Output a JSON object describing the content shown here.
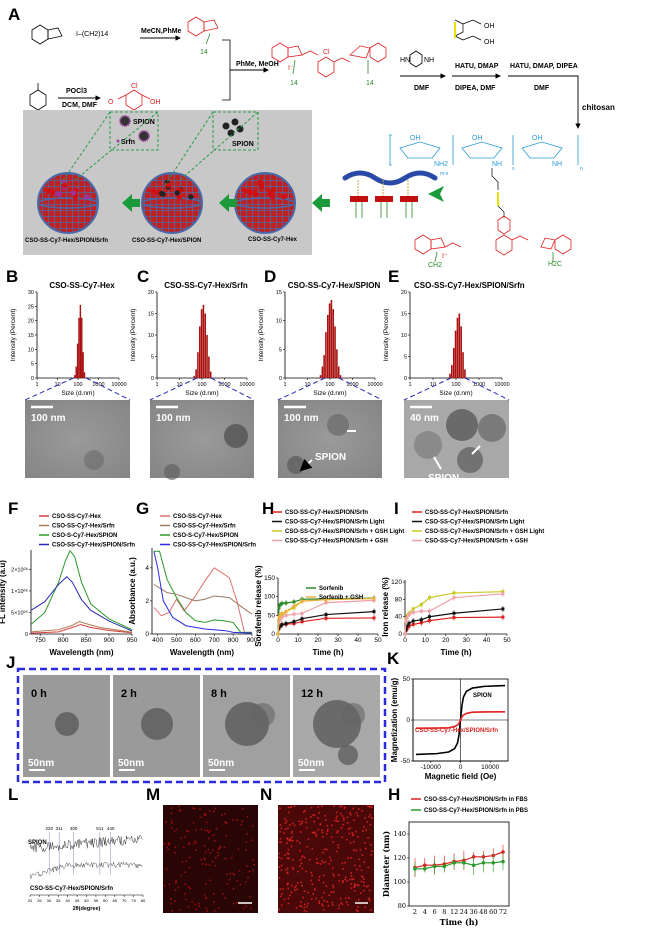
{
  "panel_labels": {
    "A": "A",
    "B": "B",
    "C": "C",
    "D": "D",
    "E": "E",
    "F": "F",
    "G": "G",
    "H": "H",
    "I": "I",
    "J": "J",
    "K": "K",
    "L": "L",
    "M": "M",
    "N": "N",
    "H2": "H"
  },
  "scheme": {
    "reagents": {
      "r1": "MeCN,PhMe",
      "r2": "PhMe, MeOH",
      "r3": "DMF",
      "r4a": "HATU, DMAP",
      "r4b": "DIPEA, DMF",
      "r5a": "HATU, DMAP, DIPEA",
      "r5b": "DMF",
      "r6": "chitosan",
      "r7a": "POCl3",
      "r7b": "DCM, DMF"
    },
    "atoms": {
      "cl": "Cl",
      "oh": "OH",
      "o": "O",
      "hn": "HN",
      "nh": "NH",
      "iodide": "I⁻",
      "n14": "14",
      "alkyl": "I–(CH2)14",
      "ch2": "CH2",
      "h2c": "H2C",
      "nh2": "NH2",
      "mx": "m-x",
      "x": "x",
      "n": "n",
      "n_plus": "N⁺",
      "n_atom": "N"
    },
    "inset_spion_srfn": {
      "spion": "SPION",
      "srfn": "Srfn"
    },
    "inset_spion": "SPION",
    "nanoparticles": [
      "CSO-SS-Cy7-Hex/SPION/Srfn",
      "CSO-SS-Cy7-Hex/SPION",
      "CSO-SS-Cy7-Hex"
    ],
    "colors": {
      "cy7": "#e02020",
      "alkyl": "#2a8a2a",
      "linker": "#e8e000",
      "chitosan": "#2a9ad8",
      "arrow": "#1a9a3a",
      "box": "#c8c8c8",
      "shell": "#4a6aa8"
    }
  },
  "tem": {
    "scale_bars": [
      "100 nm",
      "100 nm",
      "100 nm",
      "40 nm"
    ],
    "spion_labels": {
      "D": "SPION",
      "E": "SPION"
    }
  },
  "timelapse": {
    "times": [
      "0 h",
      "2 h",
      "8 h",
      "12 h"
    ],
    "scale_bar": "50nm"
  },
  "chart_data": [
    {
      "id": "B",
      "type": "bar",
      "title": "CSO-SS-Cy7-Hex",
      "xlabel": "Size (d.nm)",
      "ylabel": "Intensity (Percent)",
      "xscale": "log",
      "xlim": [
        1,
        10000
      ],
      "xticks": [
        1,
        10,
        100,
        1000,
        10000
      ],
      "ylim": [
        0,
        30
      ],
      "yticks": [
        0,
        5,
        10,
        15,
        20,
        25,
        30
      ],
      "x": [
        70,
        82,
        96,
        112,
        131,
        153,
        178,
        208
      ],
      "values": [
        1,
        4,
        12,
        21,
        25.5,
        21,
        9,
        2
      ],
      "color": "#aa1010"
    },
    {
      "id": "C",
      "type": "bar",
      "title": "CSO-SS-Cy7-Hex/Srfn",
      "xlabel": "Size (d.nm)",
      "ylabel": "Intensity (Percent)",
      "xscale": "log",
      "xlim": [
        1,
        10000
      ],
      "xticks": [
        1,
        10,
        100,
        1000,
        10000
      ],
      "ylim": [
        0,
        20
      ],
      "yticks": [
        0,
        5,
        10,
        15,
        20
      ],
      "x": [
        45,
        55,
        66,
        80,
        96,
        116,
        140,
        168,
        203,
        245
      ],
      "values": [
        0.5,
        2,
        6,
        12,
        16,
        17,
        15,
        10,
        5,
        1.5
      ],
      "color": "#aa1010"
    },
    {
      "id": "D",
      "type": "bar",
      "title": "CSO-SS-Cy7-Hex/SPION",
      "xlabel": "Size (d.nm)",
      "ylabel": "Intensity (Percent)",
      "xscale": "log",
      "xlim": [
        1,
        10000
      ],
      "xticks": [
        1,
        10,
        100,
        1000,
        10000
      ],
      "ylim": [
        0,
        15
      ],
      "yticks": [
        0,
        5,
        10,
        15
      ],
      "x": [
        38,
        46,
        55,
        66,
        80,
        96,
        116,
        140,
        168,
        203,
        245,
        295
      ],
      "values": [
        0.5,
        2,
        4,
        8,
        11,
        13,
        13.6,
        12,
        9,
        5,
        2,
        0.5
      ],
      "color": "#aa1010"
    },
    {
      "id": "E",
      "type": "bar",
      "title": "CSO-SS-Cy7-Hex/SPION/Srfn",
      "xlabel": "Size (d.nm)",
      "ylabel": "Intensity (Percent)",
      "xscale": "log",
      "xlim": [
        1,
        10000
      ],
      "xticks": [
        1,
        10,
        100,
        1000,
        10000
      ],
      "ylim": [
        0,
        20
      ],
      "yticks": [
        0,
        5,
        10,
        15,
        20
      ],
      "x": [
        55,
        66,
        80,
        96,
        116,
        140,
        168,
        203,
        245
      ],
      "values": [
        1,
        3,
        7,
        11,
        14,
        15,
        12,
        6,
        2
      ],
      "color": "#aa1010"
    },
    {
      "id": "F",
      "type": "line",
      "xlabel": "Wavelength (nm)",
      "ylabel": "FL intensity (a.u)",
      "xlim": [
        730,
        950
      ],
      "xticks": [
        750,
        800,
        850,
        900,
        950
      ],
      "ylim": [
        0,
        1.95
      ],
      "yticks": [
        0,
        0.5,
        1,
        1.5
      ],
      "ytick_labels": [
        "0",
        "5×10⁰⁵",
        "1×10⁰⁶",
        "2×10⁰⁶"
      ],
      "series": [
        {
          "name": "CSO-SS-Cy7-Hex",
          "color": "#d84040",
          "x": [
            730,
            790,
            820,
            838,
            860,
            900,
            950
          ],
          "y": [
            0.02,
            0.05,
            0.15,
            0.22,
            0.15,
            0.08,
            0.03
          ]
        },
        {
          "name": "CSO-SS-Cy7-Hex/Srfn",
          "color": "#b07a50",
          "x": [
            730,
            790,
            820,
            835,
            850,
            880,
            950
          ],
          "y": [
            0.05,
            0.1,
            0.2,
            0.29,
            0.24,
            0.15,
            0.04
          ]
        },
        {
          "name": "CSO-S-Cy7-Hex/SPION",
          "color": "#2a9a2a",
          "x": [
            730,
            760,
            790,
            805,
            815,
            825,
            840,
            860,
            900,
            950
          ],
          "y": [
            0.22,
            0.5,
            1.2,
            1.7,
            1.93,
            1.8,
            1.2,
            0.7,
            0.35,
            0.1
          ]
        },
        {
          "name": "CSO-SS-Cy7-Hex/SPION/Srfn",
          "color": "#2a2ab8",
          "x": [
            730,
            760,
            790,
            808,
            820,
            840,
            860,
            900,
            950
          ],
          "y": [
            0.55,
            0.75,
            1.15,
            1.33,
            1.2,
            0.8,
            0.55,
            0.3,
            0.07
          ]
        }
      ]
    },
    {
      "id": "G",
      "type": "line",
      "xlabel": "Wavelength (nm)",
      "ylabel": "Absorbance (a.u.)",
      "xlim": [
        370,
        900
      ],
      "xticks": [
        400,
        500,
        600,
        700,
        800,
        900
      ],
      "ylim": [
        0,
        5.2
      ],
      "yticks": [
        0,
        2,
        4
      ],
      "series": [
        {
          "name": "CSO-SS-Cy7-Hex",
          "color": "#e07070",
          "x": [
            380,
            420,
            460,
            500,
            540,
            600,
            650,
            700,
            740,
            780,
            820,
            860,
            900
          ],
          "y": [
            1.6,
            1.1,
            1.3,
            2.1,
            1.4,
            2.3,
            3.2,
            4,
            3.7,
            3.4,
            2,
            0.1,
            0.1
          ]
        },
        {
          "name": "CSO-SS-Cy7-Hex/Srfn",
          "color": "#9a7a60",
          "x": [
            380,
            450,
            500,
            550,
            600,
            650,
            700,
            780,
            850,
            900
          ],
          "y": [
            3,
            2.5,
            2.4,
            2.2,
            2,
            2.1,
            2.3,
            2.2,
            1.6,
            1.2
          ]
        },
        {
          "name": "CSO-S-Cy7-Hex/SPION",
          "color": "#2a9a2a",
          "x": [
            380,
            410,
            450,
            500,
            550,
            600,
            650,
            700,
            750,
            800,
            840,
            900
          ],
          "y": [
            5,
            5,
            3.3,
            2.2,
            1.3,
            0.8,
            0.7,
            0.85,
            0.8,
            0.7,
            0.1,
            0.1
          ]
        },
        {
          "name": "CSO-SS-Cy7-Hex/SPION/Srfn",
          "color": "#2a2ae0",
          "x": [
            380,
            400,
            430,
            480,
            550,
            650,
            760,
            800,
            900
          ],
          "y": [
            5,
            4,
            2,
            1,
            0.5,
            0.3,
            0.2,
            0.1,
            0.05
          ]
        }
      ]
    },
    {
      "id": "H",
      "type": "line",
      "xlabel": "Time (h)",
      "ylabel": "Sorafenib release (%)",
      "xlim": [
        0,
        50
      ],
      "xticks": [
        0,
        10,
        20,
        30,
        40,
        50
      ],
      "ylim": [
        0,
        150
      ],
      "yticks": [
        0,
        50,
        100,
        150
      ],
      "series": [
        {
          "name": "CSO-SS-Cy7-Hex/SPION/Srfn",
          "color": "#e02020",
          "x": [
            0,
            0.5,
            1,
            2,
            4,
            8,
            12,
            24,
            48
          ],
          "y": [
            0,
            15,
            20,
            25,
            26,
            28,
            33,
            42,
            43
          ]
        },
        {
          "name": "CSO-SS-Cy7-Hex/SPION/Srfn Light",
          "color": "#111111",
          "x": [
            0,
            0.5,
            1,
            2,
            4,
            8,
            12,
            24,
            48
          ],
          "y": [
            0,
            15,
            22,
            25,
            28,
            33,
            41,
            52,
            60
          ]
        },
        {
          "name": "CSO-SS-Cy7-Hex/SPION/Srfn + GSH Light",
          "color": "#c8c820",
          "x": [
            0,
            0.5,
            1,
            2,
            4,
            8,
            12,
            24,
            48
          ],
          "y": [
            0,
            40,
            45,
            48,
            60,
            70,
            88,
            92,
            95
          ]
        },
        {
          "name": "CSO-SS-Cy7-Hex/SPION/Srfn + GSH",
          "color": "#f0a0a8",
          "x": [
            0,
            0.5,
            1,
            2,
            4,
            8,
            12,
            24,
            48
          ],
          "y": [
            0,
            30,
            38,
            45,
            50,
            53,
            55,
            84,
            90
          ]
        },
        {
          "name": "Sorfenib",
          "color": "#2a8a2a",
          "x": [
            0,
            0.5,
            1,
            2,
            4,
            8,
            12,
            24,
            48
          ],
          "y": [
            0,
            70,
            78,
            82,
            83,
            86,
            93,
            94,
            96
          ]
        },
        {
          "name": "Sorfenib + GSH",
          "color": "#f0b040",
          "x": [
            0,
            0.5,
            1,
            2,
            4,
            8,
            12,
            24,
            48
          ],
          "y": [
            0,
            45,
            50,
            55,
            60,
            75,
            88,
            92,
            95
          ]
        }
      ]
    },
    {
      "id": "I",
      "type": "line",
      "xlabel": "Time (h)",
      "ylabel": "Iron release (%)",
      "xlim": [
        0,
        50
      ],
      "xticks": [
        0,
        10,
        20,
        30,
        40,
        50
      ],
      "ylim": [
        0,
        125
      ],
      "yticks": [
        0,
        40,
        80,
        120
      ],
      "series": [
        {
          "name": "CSO-SS-Cy7-Hex/SPION/Srfn",
          "color": "#e02020",
          "x": [
            0,
            0.5,
            1,
            2,
            4,
            8,
            12,
            24,
            48
          ],
          "y": [
            0,
            8,
            12,
            18,
            22,
            26,
            31,
            38,
            39
          ]
        },
        {
          "name": "CSO-SS-Cy7-Hex/SPION/Srfn Light",
          "color": "#111111",
          "x": [
            0,
            0.5,
            1,
            2,
            4,
            8,
            12,
            24,
            48
          ],
          "y": [
            0,
            10,
            18,
            25,
            30,
            33,
            40,
            48,
            58
          ]
        },
        {
          "name": "CSO-SS-Cy7-Hex/SPION/Srfn + GSH Light",
          "color": "#c8c820",
          "x": [
            0,
            0.5,
            1,
            2,
            4,
            8,
            12,
            24,
            48
          ],
          "y": [
            0,
            35,
            42,
            48,
            58,
            68,
            84,
            95,
            98
          ]
        },
        {
          "name": "CSO-SS-Cy7-Hex/SPION/Srfn + GSH",
          "color": "#f0a0a8",
          "x": [
            0,
            0.5,
            1,
            2,
            4,
            8,
            12,
            24,
            48
          ],
          "y": [
            0,
            30,
            38,
            45,
            50,
            53,
            53,
            84,
            93
          ]
        }
      ]
    },
    {
      "id": "K",
      "type": "line",
      "xlabel": "Magnetic field (Oe)",
      "ylabel": "Magnetization (emu/g)",
      "xlim": [
        -16000,
        16000
      ],
      "xticks": [
        -10000,
        0,
        10000
      ],
      "ylim": [
        -50,
        50
      ],
      "yticks": [
        -50,
        0,
        50
      ],
      "series": [
        {
          "name": "SPION",
          "color": "#000000",
          "x": [
            -15000,
            -8000,
            -4000,
            -2000,
            -1000,
            -500,
            0,
            500,
            1000,
            2000,
            4000,
            8000,
            15000
          ],
          "y": [
            -42,
            -41,
            -39,
            -35,
            -28,
            -18,
            0,
            18,
            28,
            35,
            39,
            41,
            42
          ]
        },
        {
          "name": "CSO-SS-Cy7-Hex/SPION/Srfn",
          "color": "#e02020",
          "x": [
            -15000,
            -8000,
            -4000,
            -2000,
            -1000,
            -500,
            0,
            500,
            1000,
            2000,
            4000,
            8000,
            15000
          ],
          "y": [
            -10,
            -9.8,
            -9.5,
            -8,
            -6,
            -4,
            0,
            4,
            6,
            8,
            9.5,
            9.8,
            10
          ]
        }
      ]
    },
    {
      "id": "L",
      "type": "line",
      "xlabel": "2θ(degree)",
      "xlim": [
        20,
        80
      ],
      "xticks": [
        20,
        25,
        30,
        35,
        40,
        45,
        50,
        55,
        60,
        65,
        70,
        75,
        80
      ],
      "series": [
        {
          "name": "SPION"
        },
        {
          "name": "CSO-SS-Cy7-Hex/SPION/Srfn"
        }
      ],
      "peaks": [
        {
          "x": 30.2,
          "label": "220"
        },
        {
          "x": 35.5,
          "label": "311"
        },
        {
          "x": 43.2,
          "label": "400"
        },
        {
          "x": 57.1,
          "label": "511"
        },
        {
          "x": 62.8,
          "label": "440"
        }
      ]
    },
    {
      "id": "H2",
      "type": "line",
      "xlabel": "Time (h)",
      "ylabel": "Diameter (nm)",
      "categories": [
        "2",
        "4",
        "6",
        "8",
        "12",
        "24",
        "36",
        "48",
        "60",
        "72"
      ],
      "ylim": [
        80,
        150
      ],
      "yticks": [
        80,
        100,
        120,
        140
      ],
      "series": [
        {
          "name": "CSO-SS-Cy7-Hex/SPION/Srfn  in FBS",
          "color": "#e02020",
          "y": [
            112,
            114,
            114,
            115,
            117,
            118,
            121,
            121,
            122,
            125
          ],
          "err": [
            8,
            6,
            8,
            7,
            7,
            8,
            4,
            5,
            6,
            6
          ]
        },
        {
          "name": "CSO-SS-Cy7-Hex/SPION/Srfn  in PBS",
          "color": "#2a9a2a",
          "y": [
            111,
            111,
            113,
            113,
            116,
            116,
            114,
            116,
            116,
            117
          ],
          "err": [
            6,
            3,
            6,
            4,
            5,
            5,
            8,
            8,
            8,
            7
          ]
        }
      ]
    }
  ]
}
